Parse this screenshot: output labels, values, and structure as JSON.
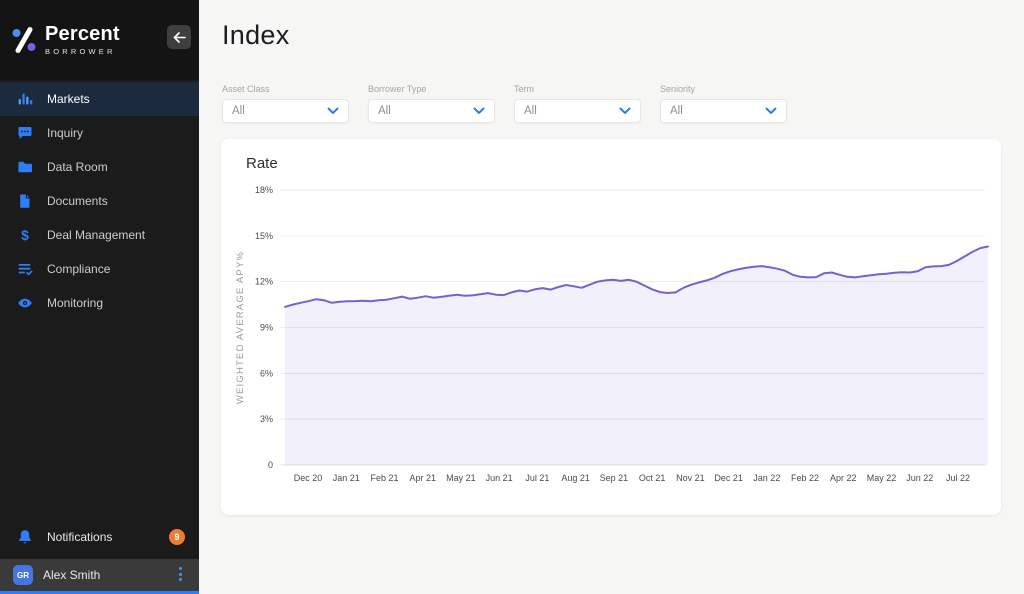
{
  "colors": {
    "accent_blue": "#2e7cf6",
    "sidebar_bg": "#1b1b1b",
    "active_item_bg": "#1b2b3d",
    "badge_orange": "#ee7d33",
    "avatar_blue": "#4576e0",
    "line_purple": "#6e66d0",
    "area_fill": "rgba(110,102,208,0.09)",
    "grid_gray": "#ececec",
    "main_bg": "#f6f6f5"
  },
  "sidebar": {
    "logo": {
      "name": "Percent",
      "sub": "BORROWER",
      "icon": "percent-logo-icon"
    },
    "back_button_icon": "left-arrow-icon",
    "items": [
      {
        "label": "Markets",
        "icon": "bar-chart-icon",
        "active": true
      },
      {
        "label": "Inquiry",
        "icon": "chat-bubble-icon",
        "active": false
      },
      {
        "label": "Data Room",
        "icon": "folder-icon",
        "active": false
      },
      {
        "label": "Documents",
        "icon": "document-icon",
        "active": false
      },
      {
        "label": "Deal Management",
        "icon": "dollar-icon",
        "active": false
      },
      {
        "label": "Compliance",
        "icon": "checklist-icon",
        "active": false
      },
      {
        "label": "Monitoring",
        "icon": "eye-icon",
        "active": false
      }
    ],
    "notifications": {
      "label": "Notifications",
      "badge": "9",
      "icon": "bell-icon"
    },
    "user": {
      "initials": "GR",
      "name": "Alex Smith",
      "menu_icon": "vertical-dots-icon"
    }
  },
  "header": {
    "title": "Index"
  },
  "filters": [
    {
      "label": "Asset Class",
      "value": "All"
    },
    {
      "label": "Borrower Type",
      "value": "All"
    },
    {
      "label": "Term",
      "value": "All"
    },
    {
      "label": "Seniority",
      "value": "All"
    }
  ],
  "chart_data": {
    "type": "area",
    "title": "Rate",
    "ylabel": "WEIGHTED AVERAGE APY%",
    "ylim": [
      0,
      18
    ],
    "grid": true,
    "legend": "none",
    "ytick_values": [
      0,
      3,
      6,
      9,
      12,
      15,
      18
    ],
    "ytick_labels": [
      "0",
      "3%",
      "6%",
      "9%",
      "12%",
      "15%",
      "18%"
    ],
    "x_labels": [
      "Dec 20",
      "Jan 21",
      "Feb 21",
      "Apr 21",
      "May 21",
      "Jun 21",
      "Jul 21",
      "Aug 21",
      "Sep 21",
      "Oct 21",
      "Nov 21",
      "Dec 21",
      "Jan 22",
      "Feb 22",
      "Apr 22",
      "May 22",
      "Jun 22",
      "Jul 22"
    ],
    "values": [
      10.35,
      10.5,
      10.62,
      10.72,
      10.85,
      10.78,
      10.62,
      10.68,
      10.72,
      10.73,
      10.75,
      10.72,
      10.78,
      10.82,
      10.92,
      11.02,
      10.88,
      10.95,
      11.05,
      10.95,
      11.0,
      11.08,
      11.15,
      11.08,
      11.1,
      11.18,
      11.25,
      11.15,
      11.12,
      11.3,
      11.42,
      11.35,
      11.5,
      11.58,
      11.48,
      11.65,
      11.78,
      11.7,
      11.6,
      11.8,
      12.0,
      12.08,
      12.12,
      12.05,
      12.12,
      12.0,
      11.75,
      11.5,
      11.32,
      11.26,
      11.3,
      11.6,
      11.8,
      11.95,
      12.08,
      12.25,
      12.5,
      12.68,
      12.8,
      12.9,
      12.97,
      13.02,
      12.95,
      12.85,
      12.72,
      12.45,
      12.32,
      12.28,
      12.3,
      12.55,
      12.6,
      12.45,
      12.32,
      12.28,
      12.35,
      12.42,
      12.48,
      12.52,
      12.58,
      12.62,
      12.6,
      12.68,
      12.95,
      13.0,
      13.02,
      13.1,
      13.35,
      13.65,
      13.95,
      14.2,
      14.3
    ]
  }
}
